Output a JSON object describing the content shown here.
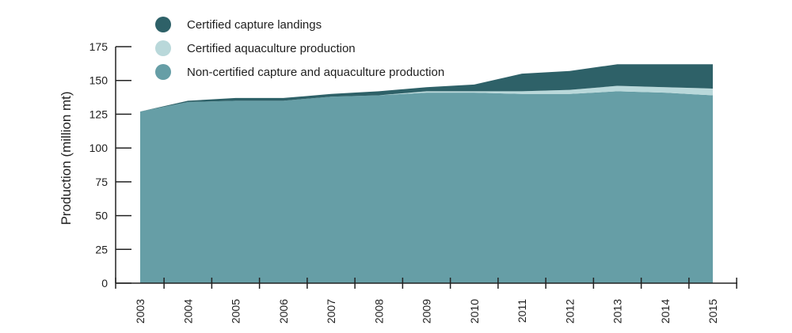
{
  "chart_data": {
    "type": "area",
    "stacked": true,
    "title": "",
    "xlabel": "",
    "ylabel": "Production (million mt)",
    "ylim": [
      0,
      175
    ],
    "yticks": [
      0,
      25,
      50,
      75,
      100,
      125,
      150,
      175
    ],
    "categories": [
      "2003",
      "2004",
      "2005",
      "2006",
      "2007",
      "2008",
      "2009",
      "2010",
      "2011",
      "2012",
      "2013",
      "2014",
      "2015"
    ],
    "series": [
      {
        "name": "Non-certified capture and aquaculture production",
        "color": "#669ea6",
        "values": [
          127,
          134,
          135,
          135,
          138,
          139,
          141,
          141,
          140,
          140,
          142,
          141,
          139
        ]
      },
      {
        "name": "Certified aquaculture production",
        "color": "#b9d8da",
        "values": [
          0,
          0,
          0,
          0,
          0,
          0,
          1,
          1,
          2,
          3,
          4,
          4,
          5
        ]
      },
      {
        "name": "Certified capture landings",
        "color": "#2e6168",
        "values": [
          0,
          1,
          2,
          2,
          2,
          3,
          3,
          5,
          13,
          14,
          16,
          17,
          18
        ]
      }
    ],
    "legend": [
      {
        "label": "Certified capture landings",
        "color": "#2e6168"
      },
      {
        "label": "Certified aquaculture production",
        "color": "#b9d8da"
      },
      {
        "label": "Non-certified capture and aquaculture production",
        "color": "#669ea6"
      }
    ],
    "legend_position": "top"
  }
}
